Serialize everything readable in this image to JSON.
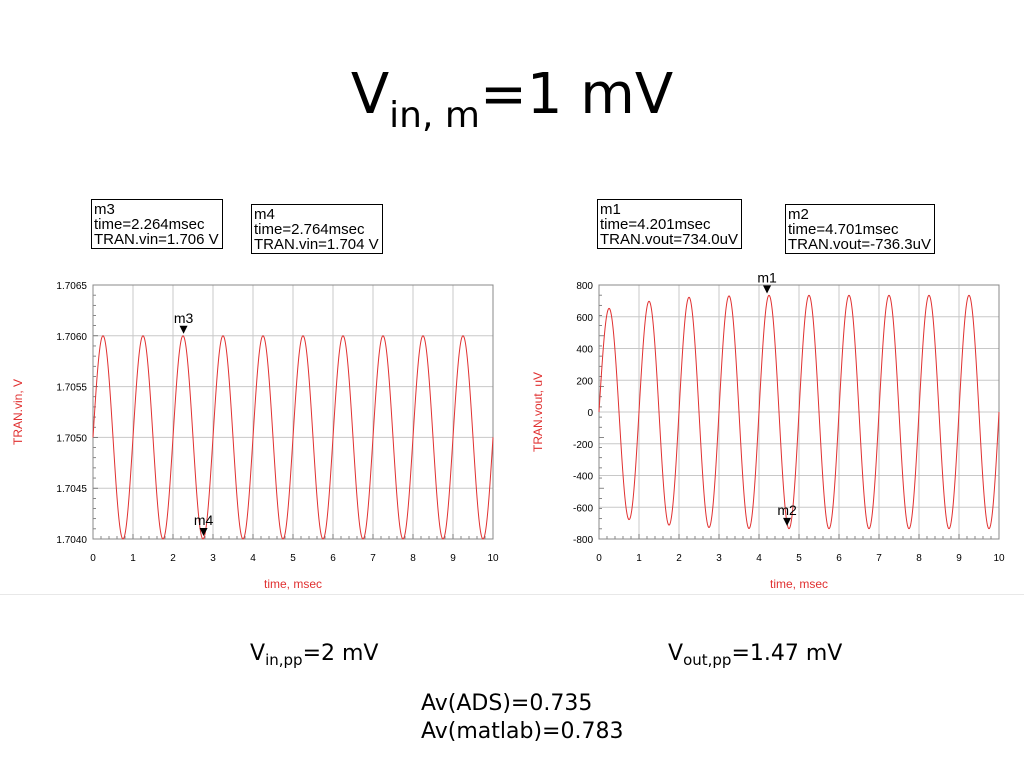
{
  "slide": {
    "title_main": "V",
    "title_sub": "in, m",
    "title_rest": "=1 mV",
    "caption_left_main": "V",
    "caption_left_sub": "in,pp",
    "caption_left_rest": "=2 mV",
    "caption_right_main": "V",
    "caption_right_sub": "out,pp",
    "caption_right_rest": "=1.47 mV",
    "av_ads": "Av(ADS)=0.735",
    "av_matlab": "Av(matlab)=0.783"
  },
  "colors": {
    "trace": "#e03030",
    "grid": "#c8c8c8",
    "axis_label": "#e03030"
  },
  "chart_data": [
    {
      "type": "line",
      "xlabel": "time, msec",
      "ylabel": "TRAN.vin, V",
      "xlim": [
        0,
        10
      ],
      "ylim": [
        1.704,
        1.7065
      ],
      "xticks": [
        "0",
        "1",
        "2",
        "3",
        "4",
        "5",
        "6",
        "7",
        "8",
        "9",
        "10"
      ],
      "yticks": [
        "1.7040",
        "1.7045",
        "1.7050",
        "1.7055",
        "1.7060",
        "1.7065"
      ],
      "grid": true,
      "series": [
        {
          "offset": 1.705,
          "amplitude": 0.001,
          "frequency_khz": 1.0,
          "phase": 0,
          "amplitude_ramp": []
        }
      ],
      "markers": [
        {
          "name": "m3",
          "x": 2.264,
          "y": 1.706,
          "label_lines": [
            "m3",
            "time=2.264msec",
            "TRAN.vin=1.706 V"
          ]
        },
        {
          "name": "m4",
          "x": 2.764,
          "y": 1.704,
          "label_lines": [
            "m4",
            "time=2.764msec",
            "TRAN.vin=1.704 V"
          ]
        }
      ]
    },
    {
      "type": "line",
      "xlabel": "time, msec",
      "ylabel": "TRAN.vout, uV",
      "xlim": [
        0,
        10
      ],
      "ylim": [
        -800,
        800
      ],
      "xticks": [
        "0",
        "1",
        "2",
        "3",
        "4",
        "5",
        "6",
        "7",
        "8",
        "9",
        "10"
      ],
      "yticks": [
        "-800",
        "-600",
        "-400",
        "-200",
        "0",
        "200",
        "400",
        "600",
        "800"
      ],
      "grid": true,
      "series": [
        {
          "offset": 0,
          "amplitude": 735,
          "frequency_khz": 1.0,
          "phase": 0,
          "amplitude_ramp": [
            [
              0,
              640
            ],
            [
              1,
              690
            ],
            [
              2,
              720
            ],
            [
              3,
              730
            ],
            [
              4,
              735
            ],
            [
              10,
              735
            ]
          ]
        }
      ],
      "markers": [
        {
          "name": "m1",
          "x": 4.201,
          "y": 734.0,
          "label_lines": [
            "m1",
            "time=4.201msec",
            "TRAN.vout=734.0uV"
          ]
        },
        {
          "name": "m2",
          "x": 4.701,
          "y": -736.3,
          "label_lines": [
            "m2",
            "time=4.701msec",
            "TRAN.vout=-736.3uV"
          ]
        }
      ]
    }
  ]
}
